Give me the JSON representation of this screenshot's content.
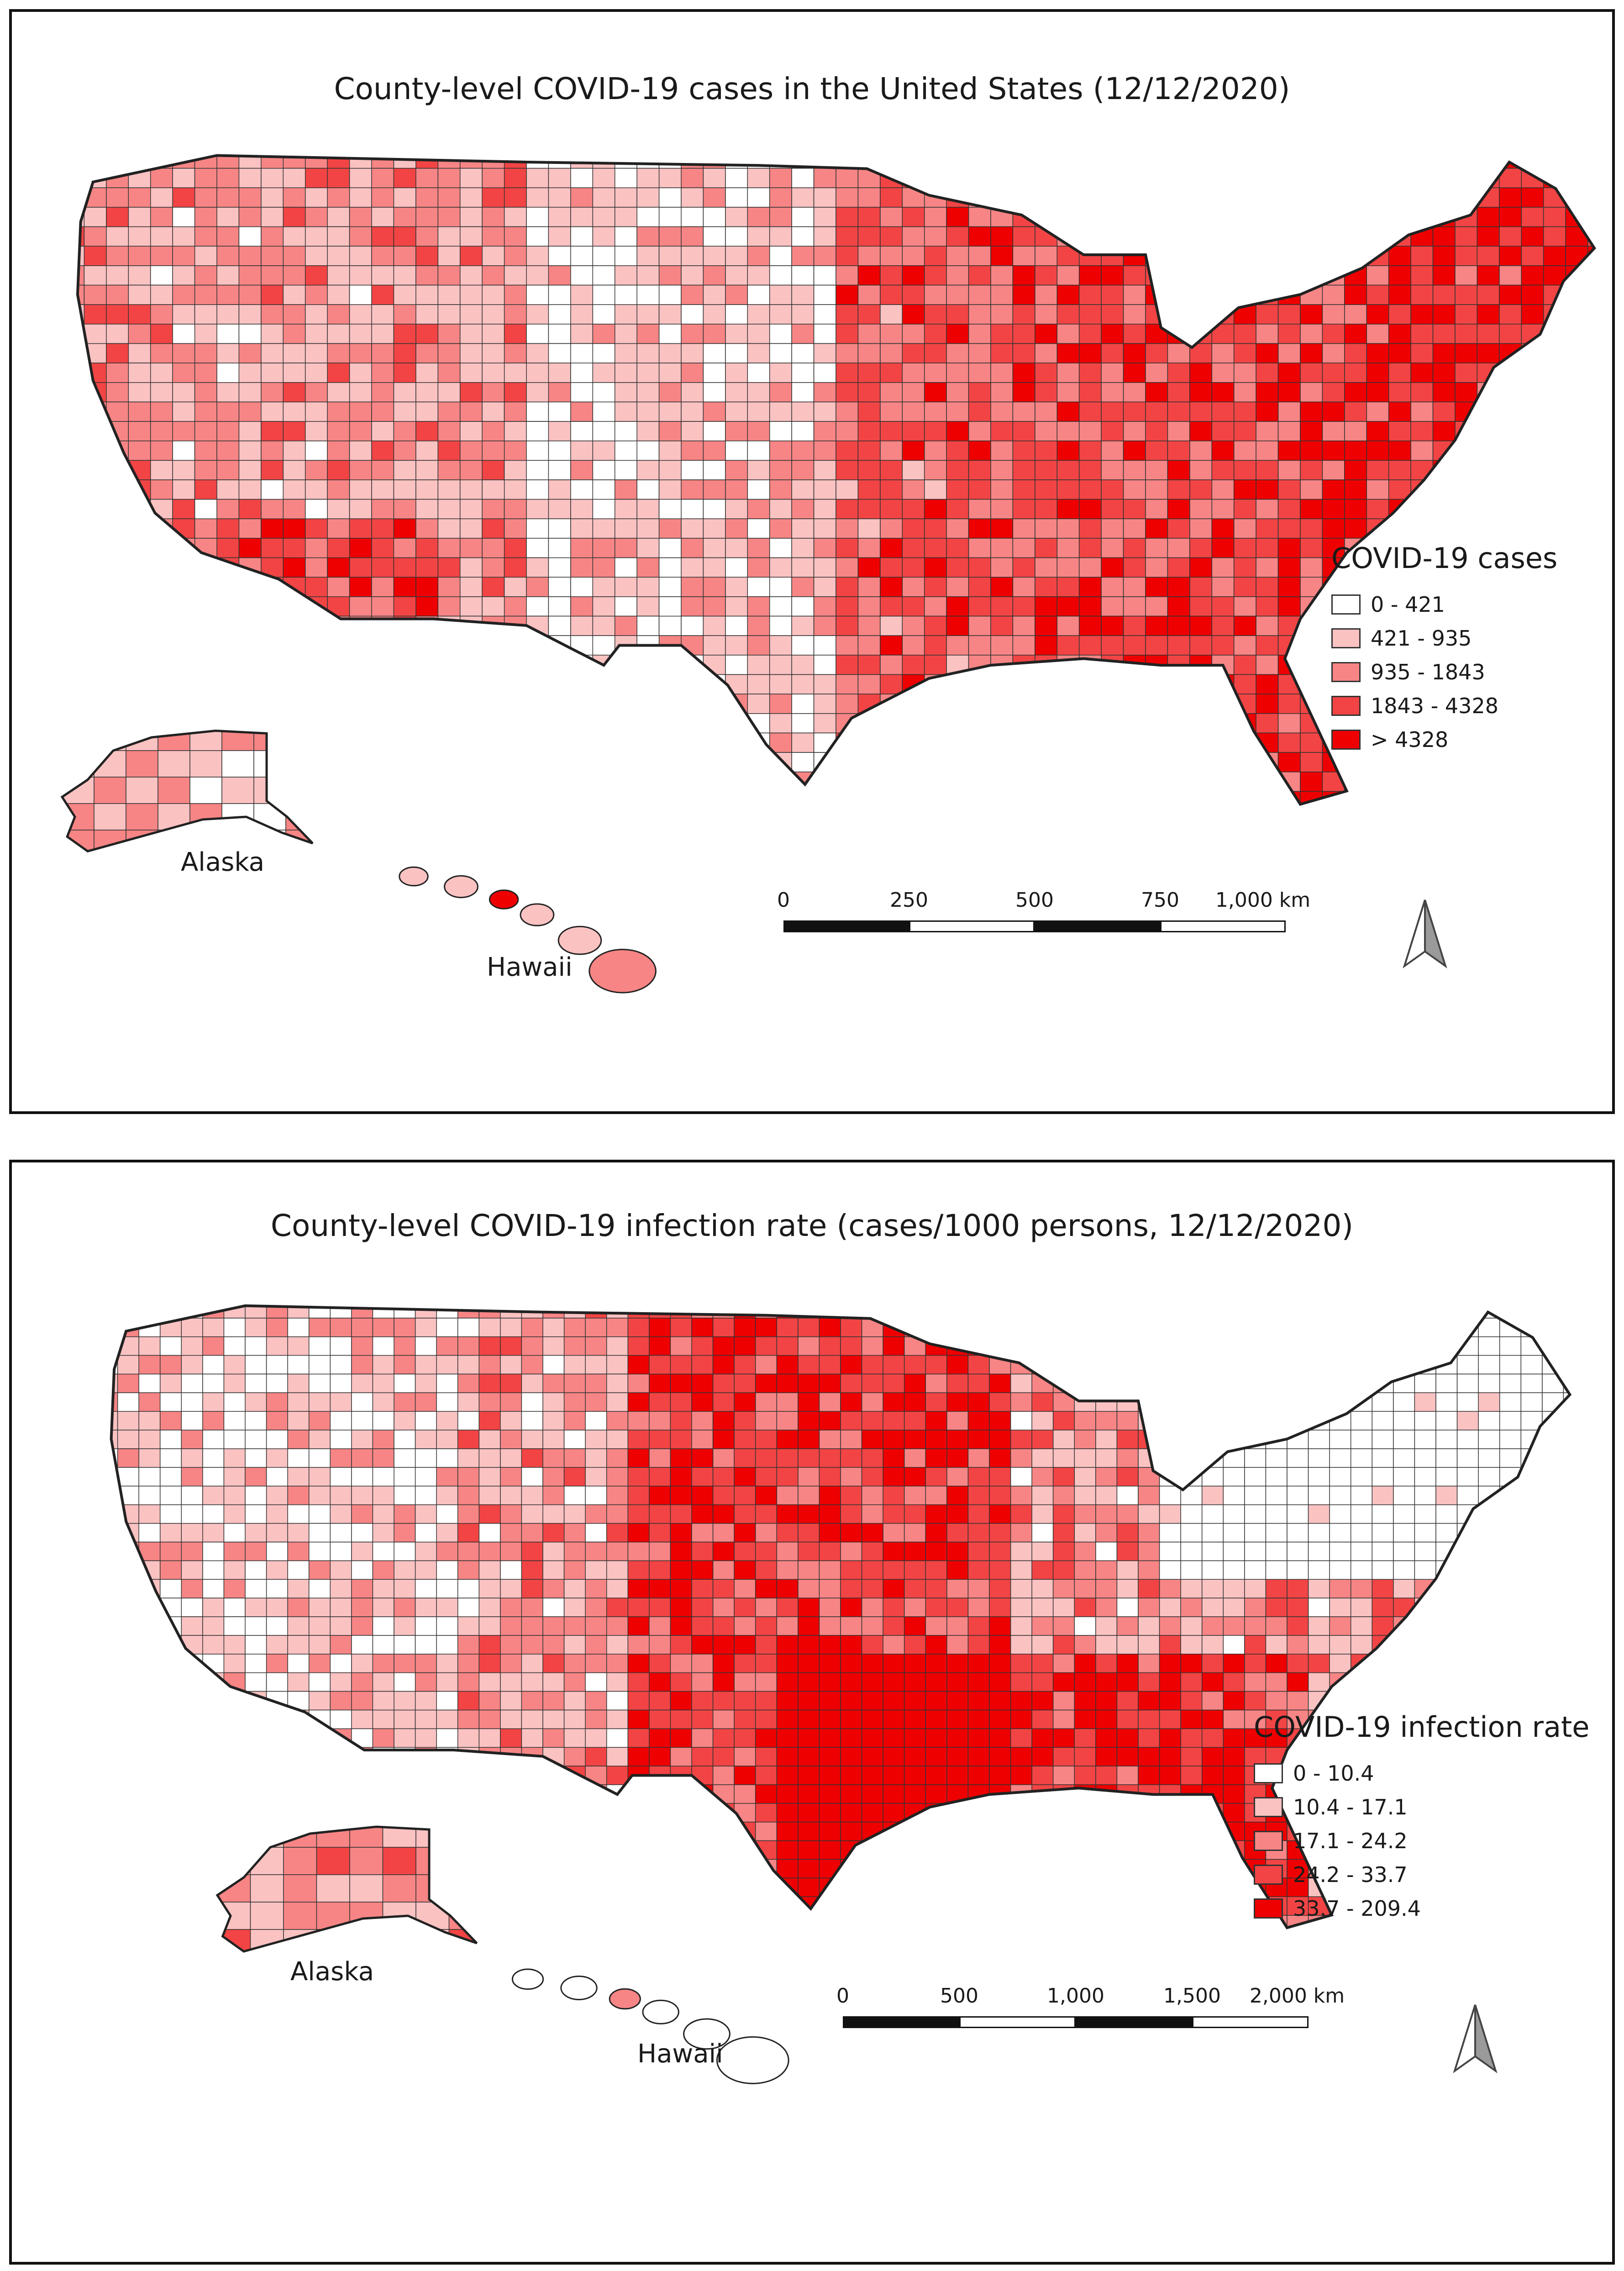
{
  "colors": {
    "class1": "#ffffff",
    "class2": "#fbc2c2",
    "class3": "#f78585",
    "class4": "#f24444",
    "class5": "#ee0000",
    "border": "#333333"
  },
  "maps": [
    {
      "title": "County-level COVID-19 cases in the United States (12/12/2020)",
      "legend": {
        "title": "COVID-19 cases",
        "items": [
          {
            "label": "0 - 421",
            "color": "#ffffff"
          },
          {
            "label": "421 - 935",
            "color": "#fbc2c2"
          },
          {
            "label": "935 - 1843",
            "color": "#f78585"
          },
          {
            "label": "1843 - 4328",
            "color": "#f24444"
          },
          {
            "label": "> 4328",
            "color": "#ee0000"
          }
        ]
      },
      "insets": {
        "alaska": "Alaska",
        "hawaii": "Hawaii"
      },
      "scale": {
        "ticks": [
          "0",
          "250",
          "500",
          "750",
          "1,000 km"
        ]
      },
      "north_arrow": "north-arrow-icon"
    },
    {
      "title": "County-level COVID-19 infection rate (cases/1000 persons, 12/12/2020)",
      "legend": {
        "title": "COVID-19 infection rate",
        "items": [
          {
            "label": "0 - 10.4",
            "color": "#ffffff"
          },
          {
            "label": "10.4 - 17.1",
            "color": "#fbc2c2"
          },
          {
            "label": "17.1 - 24.2",
            "color": "#f78585"
          },
          {
            "label": "24.2 - 33.7",
            "color": "#f24444"
          },
          {
            "label": "33.7 - 209.4",
            "color": "#ee0000"
          }
        ]
      },
      "insets": {
        "alaska": "Alaska",
        "hawaii": "Hawaii"
      },
      "scale": {
        "ticks": [
          "0",
          "500",
          "1,000",
          "1,500",
          "2,000 km"
        ]
      },
      "north_arrow": "north-arrow-icon"
    }
  ]
}
